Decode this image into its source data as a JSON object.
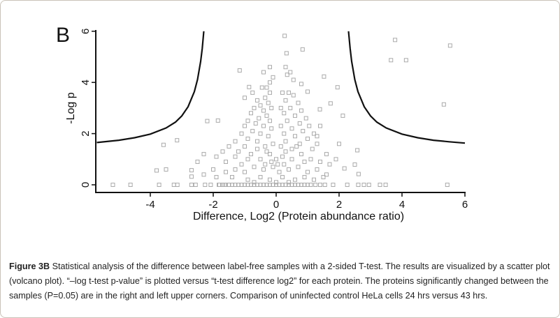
{
  "chart_data": {
    "type": "scatter",
    "panel_label": "B",
    "xlabel": "Difference, Log2 (Protein abundance ratio)",
    "ylabel": "-Log p",
    "xlim": [
      -5.7,
      6
    ],
    "ylim": [
      0,
      6
    ],
    "xticks": [
      -4,
      -2,
      0,
      2,
      4,
      6
    ],
    "yticks": [
      0,
      2,
      4,
      6
    ],
    "grid": false,
    "marker": "open-square",
    "point_color": "#aaaaaa",
    "curve_color": "#111111",
    "threshold_curves": [
      {
        "x": [
          -5.7,
          -5,
          -4.5,
          -4,
          -3.5,
          -3.2,
          -3,
          -2.8,
          -2.6,
          -2.5,
          -2.4,
          -2.35,
          -2.3
        ],
        "y": [
          1.65,
          1.74,
          1.84,
          1.98,
          2.22,
          2.45,
          2.69,
          3.05,
          3.64,
          4.11,
          4.82,
          5.33,
          6.0
        ]
      },
      {
        "x": [
          2.3,
          2.35,
          2.4,
          2.5,
          2.6,
          2.8,
          3,
          3.2,
          3.5,
          4,
          4.5,
          5,
          5.5,
          6
        ],
        "y": [
          6.0,
          5.33,
          4.82,
          4.11,
          3.64,
          3.05,
          2.69,
          2.45,
          2.22,
          1.98,
          1.84,
          1.74,
          1.68,
          1.63
        ]
      }
    ],
    "points": [
      [
        3.78,
        5.66
      ],
      [
        5.53,
        5.44
      ],
      [
        3.65,
        4.87
      ],
      [
        4.13,
        4.87
      ],
      [
        5.33,
        3.14
      ],
      [
        5.44,
        0
      ],
      [
        0.27,
        5.82
      ],
      [
        0.84,
        5.29
      ],
      [
        0.33,
        5.14
      ],
      [
        -1.16,
        4.47
      ],
      [
        1.52,
        4.23
      ],
      [
        1.95,
        3.81
      ],
      [
        2.12,
        2.7
      ],
      [
        1.73,
        3.18
      ],
      [
        1.39,
        2.95
      ],
      [
        -0.86,
        3.82
      ],
      [
        -2.19,
        2.49
      ],
      [
        -1.85,
        2.51
      ],
      [
        -3.15,
        1.74
      ],
      [
        -3.58,
        1.56
      ],
      [
        -3.8,
        0.56
      ],
      [
        -3.5,
        0.6
      ],
      [
        -2.69,
        0.57
      ],
      [
        -2.69,
        0.32
      ],
      [
        2.58,
        1.35
      ],
      [
        2.62,
        0.42
      ],
      [
        2.5,
        0.79
      ],
      [
        2.0,
        1.6
      ],
      [
        2.17,
        0.64
      ],
      [
        1.0,
        3.64
      ],
      [
        0.8,
        3.94
      ],
      [
        -5.19,
        0
      ],
      [
        -4.63,
        0
      ],
      [
        -3.72,
        0
      ],
      [
        -3.25,
        0
      ],
      [
        -3.14,
        0
      ],
      [
        -2.69,
        0
      ],
      [
        -2.56,
        0
      ],
      [
        -2.26,
        0
      ],
      [
        -2.08,
        0
      ],
      [
        -1.82,
        0
      ],
      [
        -1.64,
        0
      ],
      [
        1.55,
        0
      ],
      [
        1.81,
        0
      ],
      [
        2.26,
        0
      ],
      [
        2.61,
        0
      ],
      [
        2.79,
        0
      ],
      [
        2.95,
        0
      ],
      [
        3.3,
        0
      ],
      [
        3.48,
        0
      ],
      [
        -0.3,
        3.8
      ],
      [
        -0.45,
        3.8
      ],
      [
        -0.2,
        3.6
      ],
      [
        -0.35,
        3.4
      ],
      [
        -0.6,
        3.3
      ],
      [
        -0.25,
        3.2
      ],
      [
        -0.5,
        3.1
      ],
      [
        -0.7,
        3.0
      ],
      [
        -0.15,
        3.0
      ],
      [
        -0.4,
        2.9
      ],
      [
        -0.8,
        2.8
      ],
      [
        -0.3,
        2.7
      ],
      [
        -0.55,
        2.6
      ],
      [
        -0.9,
        2.5
      ],
      [
        -0.2,
        2.5
      ],
      [
        -0.65,
        2.4
      ],
      [
        -1.0,
        2.3
      ],
      [
        -0.4,
        2.3
      ],
      [
        -0.15,
        2.2
      ],
      [
        -0.75,
        2.1
      ],
      [
        -1.1,
        2.0
      ],
      [
        -0.5,
        2.0
      ],
      [
        -0.25,
        1.9
      ],
      [
        -0.9,
        1.8
      ],
      [
        -1.3,
        1.7
      ],
      [
        -0.6,
        1.7
      ],
      [
        -0.1,
        1.6
      ],
      [
        -1.0,
        1.5
      ],
      [
        -1.5,
        1.5
      ],
      [
        -0.35,
        1.5
      ],
      [
        -0.2,
        4.6
      ],
      [
        -0.4,
        4.4
      ],
      [
        -0.1,
        4.2
      ],
      [
        -0.2,
        4.0
      ],
      [
        -1.0,
        3.4
      ],
      [
        -0.75,
        3.6
      ],
      [
        0.3,
        4.6
      ],
      [
        0.45,
        4.4
      ],
      [
        0.35,
        4.3
      ],
      [
        0.55,
        4.1
      ],
      [
        0.2,
        3.6
      ],
      [
        0.4,
        3.6
      ],
      [
        0.55,
        3.5
      ],
      [
        0.3,
        3.3
      ],
      [
        0.7,
        3.2
      ],
      [
        0.15,
        3.0
      ],
      [
        0.45,
        3.0
      ],
      [
        0.8,
        2.9
      ],
      [
        0.25,
        2.8
      ],
      [
        0.6,
        2.7
      ],
      [
        0.95,
        2.6
      ],
      [
        0.35,
        2.5
      ],
      [
        0.75,
        2.4
      ],
      [
        0.15,
        2.3
      ],
      [
        1.05,
        2.3
      ],
      [
        0.5,
        2.2
      ],
      [
        0.85,
        2.1
      ],
      [
        0.25,
        2.0
      ],
      [
        1.2,
        2.0
      ],
      [
        0.6,
        1.9
      ],
      [
        1.0,
        1.8
      ],
      [
        0.3,
        1.7
      ],
      [
        0.75,
        1.6
      ],
      [
        1.3,
        1.6
      ],
      [
        0.15,
        1.5
      ],
      [
        0.5,
        1.4
      ],
      [
        1.4,
        2.3
      ],
      [
        1.3,
        1.9
      ],
      [
        1.6,
        1.2
      ],
      [
        -1.7,
        1.3
      ],
      [
        -1.9,
        1.1
      ],
      [
        -2.3,
        1.2
      ],
      [
        -2.5,
        0.9
      ],
      [
        -1.6,
        0.9
      ],
      [
        -1.3,
        1.1
      ],
      [
        -1.1,
        0.8
      ],
      [
        -0.8,
        1.2
      ],
      [
        -0.5,
        1.0
      ],
      [
        -0.2,
        1.2
      ],
      [
        0,
        1.0
      ],
      [
        0.2,
        1.1
      ],
      [
        0.5,
        1.0
      ],
      [
        0.8,
        1.2
      ],
      [
        1.1,
        1.0
      ],
      [
        1.4,
        0.9
      ],
      [
        1.7,
        0.8
      ],
      [
        -2.0,
        0.6
      ],
      [
        -1.6,
        0.5
      ],
      [
        -1.3,
        0.6
      ],
      [
        -1.0,
        0.5
      ],
      [
        -0.7,
        0.7
      ],
      [
        -0.4,
        0.6
      ],
      [
        -0.1,
        0.7
      ],
      [
        0.1,
        0.5
      ],
      [
        0.4,
        0.6
      ],
      [
        0.7,
        0.7
      ],
      [
        1.0,
        0.5
      ],
      [
        1.3,
        0.6
      ],
      [
        1.6,
        0.4
      ],
      [
        1.9,
        1.0
      ],
      [
        -2.3,
        0.4
      ],
      [
        -1.9,
        0.3
      ],
      [
        -1.4,
        0.3
      ],
      [
        -0.9,
        0.2
      ],
      [
        -0.5,
        0.3
      ],
      [
        -0.2,
        0.2
      ],
      [
        0.2,
        0.3
      ],
      [
        0.6,
        0.2
      ],
      [
        0.9,
        0.3
      ],
      [
        1.2,
        0.2
      ],
      [
        1.5,
        0.3
      ],
      [
        -0.7,
        0.1
      ],
      [
        0.0,
        0.1
      ],
      [
        0.4,
        0.1
      ],
      [
        -0.6,
        1.4
      ],
      [
        -0.3,
        1.3
      ],
      [
        -0.9,
        1.0
      ],
      [
        0.3,
        1.3
      ],
      [
        0.65,
        1.5
      ],
      [
        0.9,
        0.9
      ],
      [
        -0.15,
        0.9
      ],
      [
        0.05,
        0.8
      ],
      [
        -0.35,
        0.8
      ],
      [
        0.25,
        0.8
      ],
      [
        -1.2,
        1.3
      ],
      [
        1.15,
        1.4
      ],
      [
        -1.8,
        0
      ],
      [
        -1.7,
        0
      ],
      [
        -1.6,
        0
      ],
      [
        -1.5,
        0
      ],
      [
        -1.4,
        0
      ],
      [
        -1.3,
        0
      ],
      [
        -1.2,
        0
      ],
      [
        -1.1,
        0
      ],
      [
        -1.0,
        0
      ],
      [
        -0.9,
        0
      ],
      [
        -0.8,
        0
      ],
      [
        -0.7,
        0
      ],
      [
        -0.6,
        0
      ],
      [
        -0.5,
        0
      ],
      [
        -0.4,
        0
      ],
      [
        -0.3,
        0
      ],
      [
        -0.2,
        0
      ],
      [
        -0.1,
        0
      ],
      [
        0,
        0
      ],
      [
        0.1,
        0
      ],
      [
        0.2,
        0
      ],
      [
        0.3,
        0
      ],
      [
        0.4,
        0
      ],
      [
        0.5,
        0
      ],
      [
        0.6,
        0
      ],
      [
        0.7,
        0
      ],
      [
        0.8,
        0
      ],
      [
        0.9,
        0
      ],
      [
        1.0,
        0
      ],
      [
        1.1,
        0
      ],
      [
        1.25,
        0
      ],
      [
        1.4,
        0
      ]
    ]
  },
  "caption": {
    "label": "Figure 3B",
    "text": " Statistical analysis of the difference between label-free samples with a 2-sided T-test. The results are visualized by a scatter plot (volcano plot). “–log t-test p-value” is plotted versus “t-test difference log2” for each protein. The proteins significantly changed between the samples (P=0.05) are in the right and left upper corners. Comparison of uninfected control HeLa cells 24 hrs versus 43 hrs."
  }
}
